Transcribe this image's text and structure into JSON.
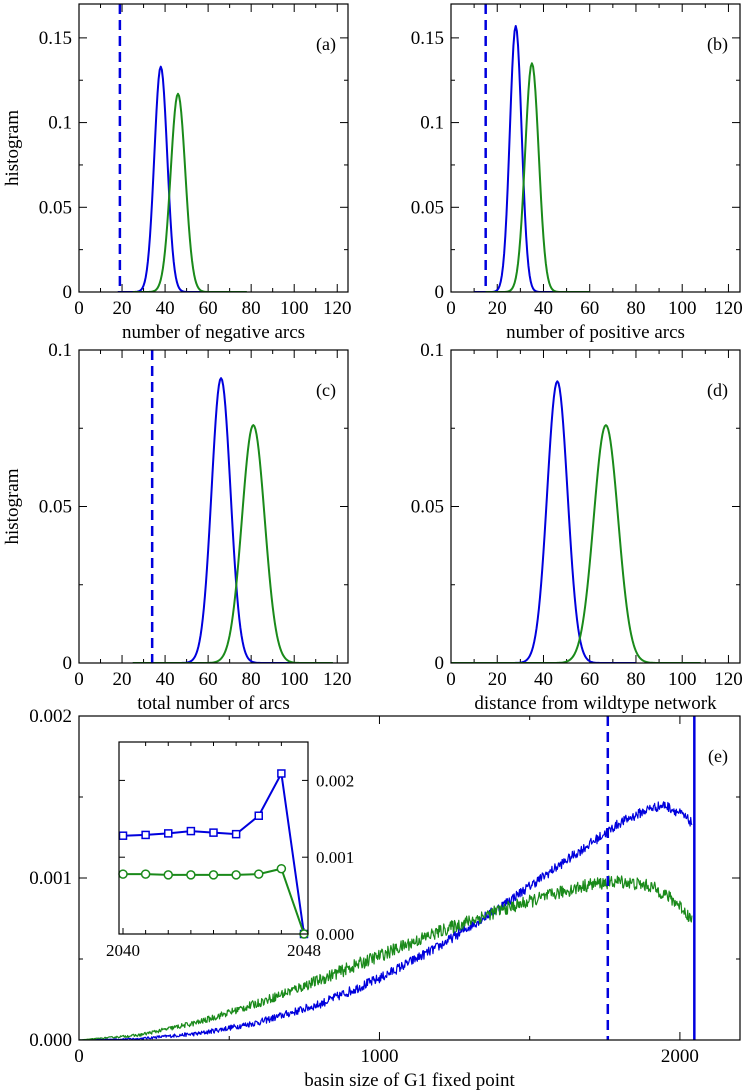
{
  "colors": {
    "blue": "#0000dd",
    "green": "#1a8a1a",
    "axis": "#000000"
  },
  "chart_data": [
    {
      "id": "a",
      "type": "line",
      "tag": "(a)",
      "xlabel": "number of negative arcs",
      "ylabel": "histogram",
      "xlim": [
        0,
        125
      ],
      "ylim": [
        0,
        0.17
      ],
      "xticks": [
        0,
        20,
        40,
        60,
        80,
        100,
        120
      ],
      "xticklabels": [
        "0",
        "20",
        "40",
        "60",
        "80",
        "100",
        "120"
      ],
      "yticks": [
        0,
        0.05,
        0.1,
        0.15
      ],
      "yticklabels": [
        "0",
        "0.05",
        "0.1",
        "0.15"
      ],
      "vline": 19,
      "series": [
        {
          "name": "blue",
          "color": "blue",
          "mu": 38,
          "sigma": 3.0,
          "amp": 0.133,
          "xmin": 18,
          "xmax": 60
        },
        {
          "name": "green",
          "color": "green",
          "mu": 46,
          "sigma": 3.4,
          "amp": 0.117,
          "xmin": 25,
          "xmax": 78
        }
      ]
    },
    {
      "id": "b",
      "type": "line",
      "tag": "(b)",
      "xlabel": "number of positive arcs",
      "ylabel": "",
      "xlim": [
        0,
        125
      ],
      "ylim": [
        0,
        0.17
      ],
      "xticks": [
        0,
        20,
        40,
        60,
        80,
        100,
        120
      ],
      "xticklabels": [
        "0",
        "20",
        "40",
        "60",
        "80",
        "100",
        "120"
      ],
      "yticks": [
        0,
        0.05,
        0.1,
        0.15
      ],
      "yticklabels": [
        "0",
        "0.05",
        "0.1",
        "0.15"
      ],
      "vline": 15,
      "series": [
        {
          "name": "blue",
          "color": "blue",
          "mu": 28,
          "sigma": 2.55,
          "amp": 0.157,
          "xmin": 10,
          "xmax": 50
        },
        {
          "name": "green",
          "color": "green",
          "mu": 35,
          "sigma": 2.95,
          "amp": 0.135,
          "xmin": 15,
          "xmax": 60
        }
      ]
    },
    {
      "id": "c",
      "type": "line",
      "tag": "(c)",
      "xlabel": "total number of arcs",
      "ylabel": "histogram",
      "xlim": [
        0,
        125
      ],
      "ylim": [
        0,
        0.1
      ],
      "xticks": [
        0,
        20,
        40,
        60,
        80,
        100,
        120
      ],
      "xticklabels": [
        "0",
        "20",
        "40",
        "60",
        "80",
        "100",
        "120"
      ],
      "yticks": [
        0,
        0.05,
        0.1
      ],
      "yticklabels": [
        "0",
        "0.05",
        "0.1"
      ],
      "vline": 34,
      "series": [
        {
          "name": "blue",
          "color": "blue",
          "mu": 66,
          "sigma": 4.4,
          "amp": 0.091,
          "xmin": 25,
          "xmax": 105
        },
        {
          "name": "green",
          "color": "green",
          "mu": 81,
          "sigma": 5.3,
          "amp": 0.076,
          "xmin": 25,
          "xmax": 118
        }
      ]
    },
    {
      "id": "d",
      "type": "line",
      "tag": "(d)",
      "xlabel": "distance from wildtype network",
      "ylabel": "",
      "xlim": [
        0,
        125
      ],
      "ylim": [
        0,
        0.1
      ],
      "xticks": [
        0,
        20,
        40,
        60,
        80,
        100,
        120
      ],
      "xticklabels": [
        "0",
        "20",
        "40",
        "60",
        "80",
        "100",
        "120"
      ],
      "yticks": [
        0,
        0.05,
        0.1
      ],
      "yticklabels": [
        "0",
        "0.05",
        "0.1"
      ],
      "vline": null,
      "series": [
        {
          "name": "blue",
          "color": "blue",
          "mu": 46,
          "sigma": 4.4,
          "amp": 0.09,
          "xmin": 0,
          "xmax": 80
        },
        {
          "name": "green",
          "color": "green",
          "mu": 67,
          "sigma": 5.3,
          "amp": 0.076,
          "xmin": 0,
          "xmax": 108
        }
      ]
    },
    {
      "id": "e",
      "type": "line",
      "tag": "(e)",
      "xlabel": "basin size of G1 fixed point",
      "ylabel": "",
      "xlim": [
        0,
        2200
      ],
      "ylim": [
        0,
        0.002
      ],
      "xticks": [
        0,
        1000,
        2000
      ],
      "xticklabels": [
        "0",
        "1000",
        "2000"
      ],
      "yticks": [
        0,
        0.001,
        0.002
      ],
      "yticklabels": [
        "0.000",
        "0.001",
        "0.002"
      ],
      "vline": 1760,
      "spike": {
        "x": 2048,
        "top": 0.002
      },
      "series": [
        {
          "name": "blue",
          "color": "blue",
          "x": [
            0,
            200,
            400,
            600,
            800,
            1000,
            1200,
            1400,
            1600,
            1700,
            1800,
            1900,
            1950,
            2000,
            2040
          ],
          "y": [
            0,
            8e-06,
            4e-05,
            0.00011,
            0.00022,
            0.00038,
            0.00058,
            0.00082,
            0.00108,
            0.00121,
            0.00134,
            0.00143,
            0.00145,
            0.0014,
            0.00134
          ],
          "noise": 3e-05
        },
        {
          "name": "green",
          "color": "green",
          "x": [
            0,
            200,
            400,
            600,
            800,
            1000,
            1200,
            1400,
            1600,
            1700,
            1800,
            1900,
            1950,
            2000,
            2040
          ],
          "y": [
            0,
            3e-05,
            0.00011,
            0.00023,
            0.00037,
            0.00052,
            0.00067,
            0.0008,
            0.00091,
            0.00096,
            0.00098,
            0.00095,
            0.0009,
            0.00083,
            0.00074
          ],
          "noise": 4e-05
        }
      ],
      "inset": {
        "xlim": [
          2040,
          2048
        ],
        "ylim": [
          0,
          0.0025
        ],
        "xticks": [
          2040,
          2048
        ],
        "xticklabels": [
          "2040",
          "2048"
        ],
        "yticks": [
          0,
          0.001,
          0.002
        ],
        "yticklabels": [
          "0.000",
          "0.001",
          "0.002"
        ],
        "series": [
          {
            "name": "blue",
            "color": "blue",
            "marker": "square",
            "x": [
              2040,
              2041,
              2042,
              2043,
              2044,
              2045,
              2046,
              2047,
              2048
            ],
            "y": [
              0.00128,
              0.00129,
              0.00131,
              0.00134,
              0.00132,
              0.0013,
              0.00154,
              0.00209,
              0.0
            ]
          },
          {
            "name": "green",
            "color": "green",
            "marker": "circle",
            "x": [
              2040,
              2041,
              2042,
              2043,
              2044,
              2045,
              2046,
              2047,
              2048
            ],
            "y": [
              0.00078,
              0.00078,
              0.00077,
              0.00077,
              0.00077,
              0.00077,
              0.00078,
              0.00085,
              0.0
            ]
          }
        ]
      }
    }
  ]
}
